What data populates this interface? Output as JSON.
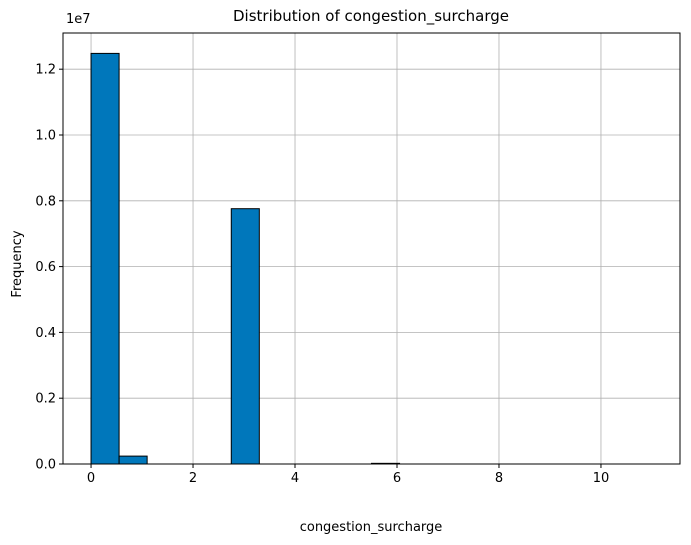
{
  "chart_data": {
    "type": "bar",
    "title": "Distribution of congestion_surcharge",
    "xlabel": "congestion_surcharge",
    "ylabel": "Frequency",
    "y_offset_text": "1e7",
    "xlim": [
      -0.55,
      11.55
    ],
    "ylim": [
      0,
      1.31
    ],
    "grid": true,
    "bar_color": "#0077bb",
    "edge_color": "#000000",
    "x_ticks": [
      0,
      2,
      4,
      6,
      8,
      10
    ],
    "x_tick_labels": [
      "0",
      "2",
      "4",
      "6",
      "8",
      "10"
    ],
    "y_ticks": [
      0,
      0.2,
      0.4,
      0.6,
      0.8,
      1.0,
      1.2
    ],
    "y_tick_labels": [
      "0.0",
      "0.2",
      "0.4",
      "0.6",
      "0.8",
      "1.0",
      "1.2"
    ],
    "bin_edges": [
      0,
      0.55,
      1.1,
      1.65,
      2.2,
      2.75,
      3.3,
      3.85,
      4.4,
      4.95,
      5.5,
      6.05,
      6.6,
      7.15,
      7.7,
      8.25,
      8.8,
      9.35,
      9.9,
      10.45,
      11.0
    ],
    "values": [
      1.248,
      0.024,
      0,
      0,
      0,
      0.776,
      0,
      0,
      0,
      0,
      0.002,
      0,
      0,
      0,
      0,
      0,
      0,
      0,
      0,
      0
    ]
  }
}
